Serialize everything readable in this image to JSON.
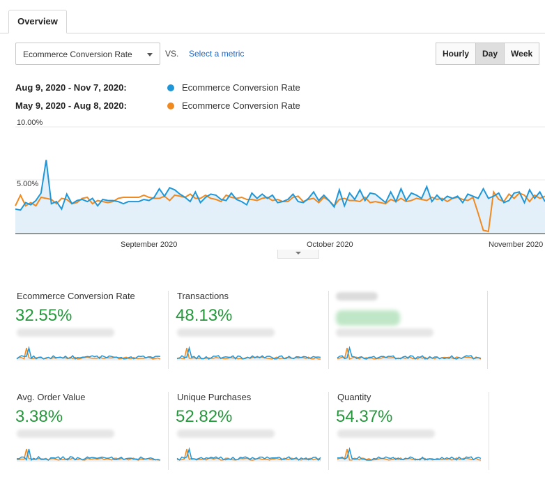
{
  "tabs": [
    {
      "label": "Overview"
    }
  ],
  "controls": {
    "metric_select": "Ecommerce Conversion Rate",
    "vs_label": "VS.",
    "select_metric_link": "Select a metric",
    "granularity": [
      {
        "label": "Hourly",
        "active": false
      },
      {
        "label": "Day",
        "active": true
      },
      {
        "label": "Week",
        "active": false
      }
    ]
  },
  "legend": [
    {
      "range": "Aug 9, 2020 - Nov 7, 2020:",
      "metric": "Ecommerce Conversion Rate",
      "color": "#1f96d8"
    },
    {
      "range": "May 9, 2020 - Aug 8, 2020:",
      "metric": "Ecommerce Conversion Rate",
      "color": "#f0891f"
    }
  ],
  "chart_data": {
    "type": "line",
    "y_ticks": [
      "10.00%",
      "5.00%"
    ],
    "ylim": [
      0,
      10
    ],
    "x_labels": [
      "September 2020",
      "October 2020",
      "November 2020"
    ],
    "series": [
      {
        "name": "Aug 9, 2020 - Nov 7, 2020: Ecommerce Conversion Rate",
        "color": "#1f96d8",
        "values": [
          2.3,
          2.2,
          2.9,
          2.7,
          3.1,
          3.8,
          6.9,
          2.8,
          3.0,
          2.3,
          3.7,
          2.8,
          3.1,
          3.2,
          3.0,
          3.3,
          2.6,
          3.2,
          3.1,
          3.1,
          3.0,
          2.8,
          3.0,
          3.0,
          3.0,
          3.2,
          3.1,
          3.4,
          4.2,
          3.5,
          4.3,
          4.1,
          3.7,
          3.4,
          3.0,
          3.9,
          2.9,
          3.4,
          3.7,
          3.6,
          3.2,
          3.1,
          3.8,
          3.2,
          3.0,
          2.7,
          3.8,
          3.3,
          3.7,
          3.3,
          3.6,
          2.9,
          3.0,
          3.2,
          3.7,
          3.0,
          2.9,
          3.3,
          3.9,
          3.1,
          3.6,
          3.1,
          2.5,
          4.1,
          2.6,
          3.8,
          3.2,
          4.1,
          3.1,
          3.8,
          3.7,
          3.3,
          2.9,
          3.9,
          3.0,
          4.2,
          3.1,
          3.8,
          3.6,
          3.3,
          4.4,
          3.0,
          3.6,
          3.1,
          3.5,
          3.3,
          3.5,
          2.9,
          3.7,
          3.5,
          3.3,
          4.2,
          3.3,
          3.5,
          3.8,
          2.9,
          3.1,
          3.8,
          3.9,
          2.9,
          4.1,
          3.3,
          3.9,
          3.0
        ]
      },
      {
        "name": "May 9, 2020 - Aug 8, 2020: Ecommerce Conversion Rate",
        "color": "#f0891f",
        "values": [
          2.6,
          3.6,
          2.6,
          2.9,
          2.6,
          3.4,
          3.3,
          3.2,
          2.8,
          3.3,
          3.2,
          2.8,
          2.9,
          3.3,
          3.4,
          2.8,
          3.1,
          3.0,
          2.9,
          3.0,
          3.3,
          3.4,
          3.4,
          3.4,
          3.4,
          3.6,
          3.4,
          3.3,
          3.3,
          3.5,
          3.1,
          3.6,
          3.5,
          3.4,
          3.7,
          3.3,
          3.3,
          3.6,
          3.3,
          3.2,
          3.0,
          3.6,
          3.4,
          3.3,
          3.4,
          3.2,
          3.2,
          3.1,
          3.3,
          3.4,
          3.1,
          3.2,
          3.0,
          3.0,
          3.4,
          3.5,
          3.0,
          3.2,
          3.3,
          2.9,
          3.4,
          3.1,
          2.6,
          3.2,
          3.3,
          3.1,
          3.1,
          3.0,
          3.4,
          2.9,
          3.0,
          2.9,
          2.8,
          3.2,
          3.0,
          3.3,
          3.0,
          3.1,
          3.3,
          3.2,
          3.1,
          3.4,
          3.2,
          3.3,
          3.0,
          3.3,
          3.4,
          3.2,
          3.1,
          3.4,
          1.9,
          0.3,
          0.2,
          3.9,
          3.2,
          3.0,
          3.7,
          3.3,
          3.8,
          3.6,
          3.0,
          3.6,
          3.3,
          3.5
        ]
      }
    ]
  },
  "cards": [
    {
      "title": "Ecommerce Conversion Rate",
      "value": "32.55%"
    },
    {
      "title": "Transactions",
      "value": "48.13%"
    },
    {
      "title": "",
      "value": ""
    },
    {
      "title": "Avg. Order Value",
      "value": "3.38%"
    },
    {
      "title": "Unique Purchases",
      "value": "52.82%"
    },
    {
      "title": "Quantity",
      "value": "54.37%"
    }
  ]
}
